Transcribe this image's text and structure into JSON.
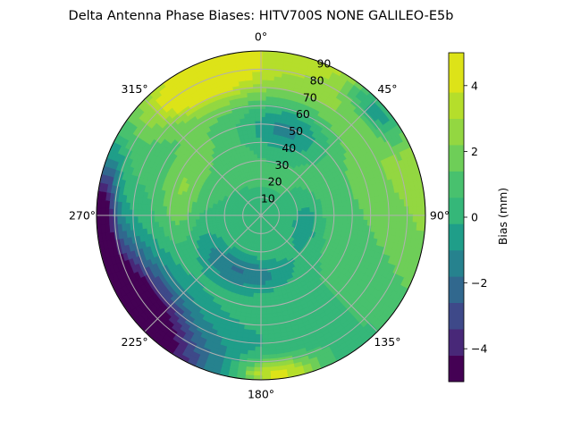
{
  "chart_data": {
    "type": "polar-contour",
    "title": "Delta Antenna Phase Biases: HITV700S        NONE GALILEO-E5b",
    "angular_ticks": [
      "0°",
      "45°",
      "90°",
      "135°",
      "180°",
      "225°",
      "270°",
      "315°"
    ],
    "radial_ticks": [
      "10",
      "20",
      "30",
      "40",
      "50",
      "60",
      "70",
      "80",
      "90"
    ],
    "radial_range": [
      0,
      90
    ],
    "grid": true,
    "colorbar": {
      "label": "Bias (mm)",
      "range": [
        -5,
        5
      ],
      "ticks": [
        "−4",
        "−2",
        "0",
        "2",
        "4"
      ],
      "tick_values": [
        -4,
        -2,
        0,
        2,
        4
      ],
      "levels": [
        -5,
        -4.2,
        -3.4,
        -2.6,
        -1.8,
        -1.0,
        -0.2,
        0.6,
        1.4,
        2.2,
        3.0,
        3.8,
        5.0
      ],
      "colors": [
        "#440154",
        "#482878",
        "#3e4989",
        "#31688e",
        "#26828e",
        "#1f9e89",
        "#35b779",
        "#48c16e",
        "#6ece58",
        "#93d741",
        "#b5de2b",
        "#dde318"
      ]
    }
  }
}
